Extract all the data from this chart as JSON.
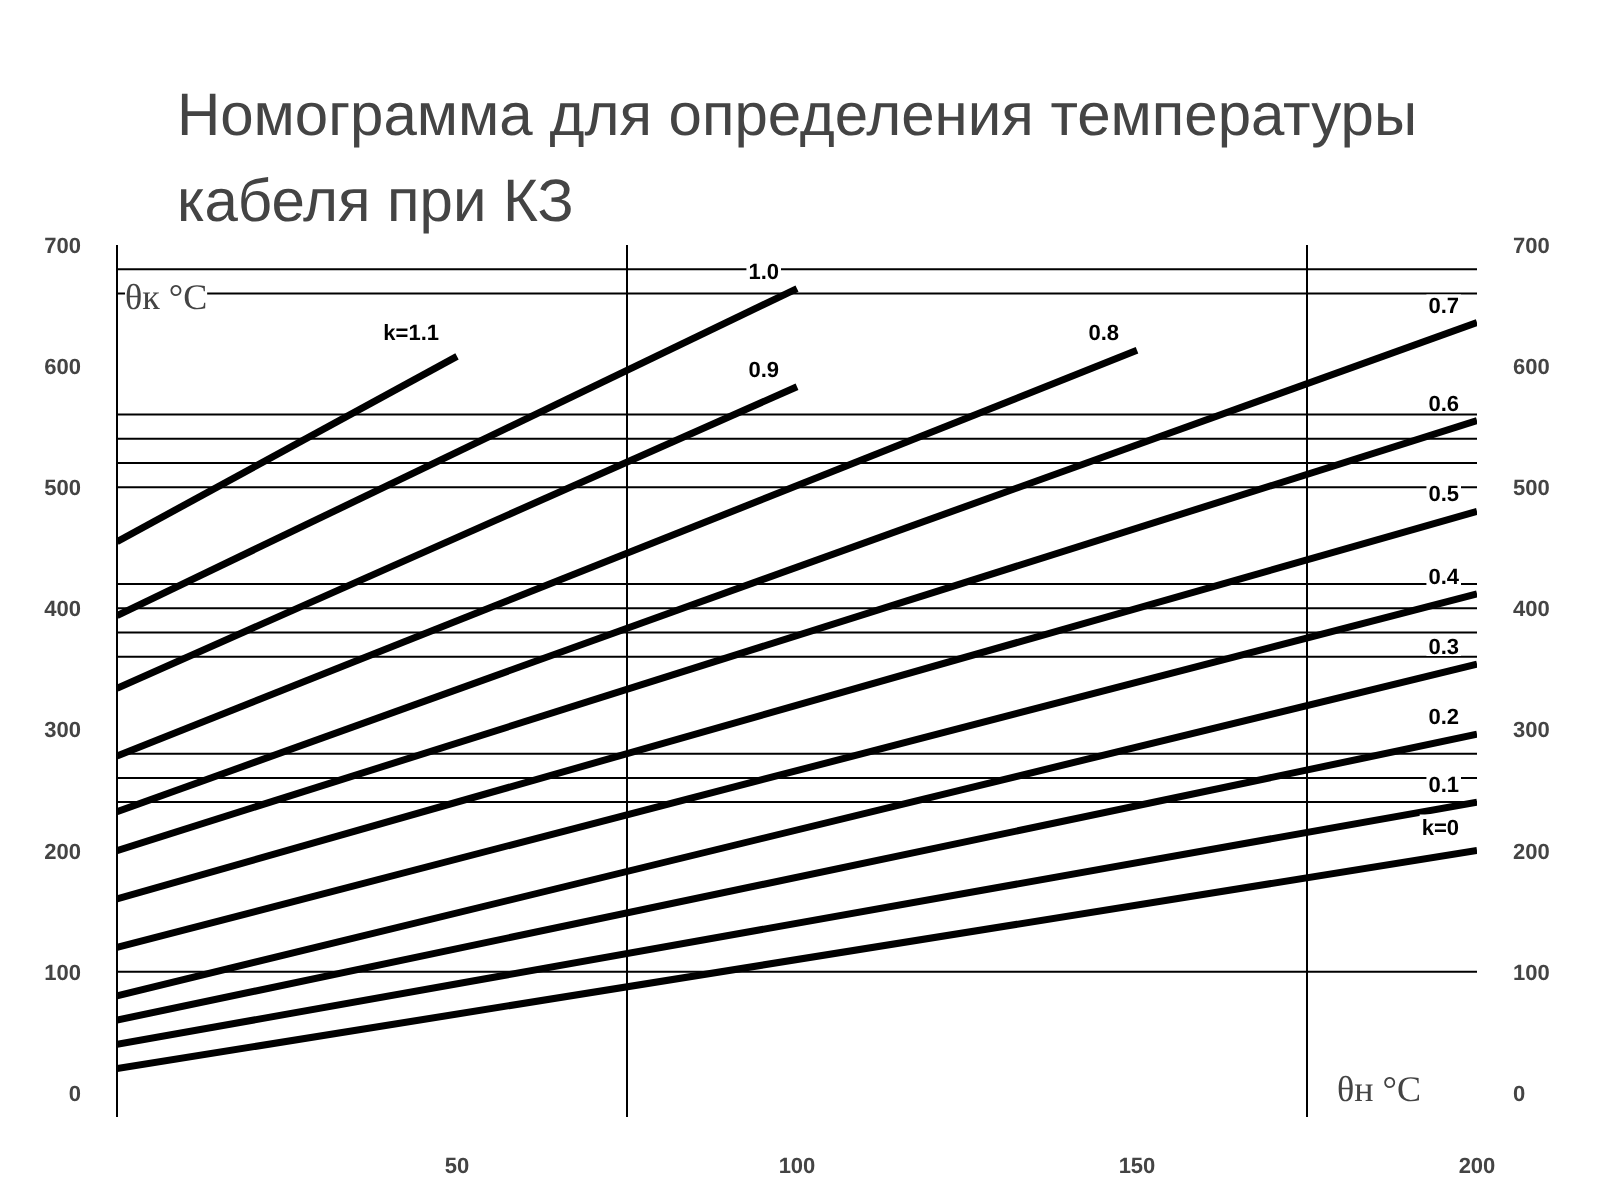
{
  "chart_data": {
    "type": "line",
    "title": "Номограмма для определения температуры кабеля при КЗ",
    "xlabel": "θн °С",
    "ylabel": "θк °С",
    "xlim": [
      0,
      200
    ],
    "xticks": [
      50,
      100,
      150,
      200
    ],
    "ylim": [
      -20,
      700
    ],
    "yticks": [
      0,
      100,
      200,
      300,
      400,
      500,
      600,
      700
    ],
    "y2lim": [
      -20,
      700
    ],
    "y2ticks": [
      0,
      100,
      200,
      300,
      400,
      500,
      600,
      700
    ],
    "grid": false,
    "marker": "none",
    "line_style": "solid",
    "series": [
      {
        "name": "k=0",
        "color": "#000000",
        "x": [
          0,
          200
        ],
        "values": [
          20,
          200
        ]
      },
      {
        "name": "0.1",
        "color": "#000000",
        "x": [
          0,
          200
        ],
        "values": [
          40,
          240
        ]
      },
      {
        "name": "0.2",
        "color": "#000000",
        "x": [
          0,
          200
        ],
        "values": [
          60,
          296
        ]
      },
      {
        "name": "0.3",
        "color": "#000000",
        "x": [
          0,
          200
        ],
        "values": [
          80,
          354
        ]
      },
      {
        "name": "0.4",
        "color": "#000000",
        "x": [
          0,
          200
        ],
        "values": [
          120,
          412
        ]
      },
      {
        "name": "0.5",
        "color": "#000000",
        "x": [
          0,
          200
        ],
        "values": [
          160,
          480
        ]
      },
      {
        "name": "0.6",
        "color": "#000000",
        "x": [
          0,
          200
        ],
        "values": [
          200,
          555
        ]
      },
      {
        "name": "0.7",
        "color": "#000000",
        "x": [
          0,
          200
        ],
        "values": [
          232,
          636
        ]
      },
      {
        "name": "0.8",
        "color": "#000000",
        "x": [
          0,
          150
        ],
        "values": [
          278,
          613
        ]
      },
      {
        "name": "0.9",
        "color": "#000000",
        "x": [
          0,
          100
        ],
        "values": [
          334,
          583
        ]
      },
      {
        "name": "1.0",
        "color": "#000000",
        "x": [
          0,
          100
        ],
        "values": [
          394,
          664
        ]
      },
      {
        "name": "k=1.1",
        "color": "#000000",
        "x": [
          0,
          50
        ],
        "values": [
          455,
          608
        ]
      }
    ],
    "ref_lines": [
      {
        "axis": "y",
        "value": 680
      },
      {
        "axis": "y",
        "value": 660
      },
      {
        "axis": "y",
        "value": 560
      },
      {
        "axis": "y",
        "value": 540
      },
      {
        "axis": "y",
        "value": 520
      },
      {
        "axis": "y",
        "value": 500
      },
      {
        "axis": "y",
        "value": 420
      },
      {
        "axis": "y",
        "value": 400
      },
      {
        "axis": "y",
        "value": 380
      },
      {
        "axis": "y",
        "value": 360
      },
      {
        "axis": "y",
        "value": 280
      },
      {
        "axis": "y",
        "value": 260
      },
      {
        "axis": "y",
        "value": 240
      },
      {
        "axis": "y",
        "value": 100
      },
      {
        "axis": "x",
        "value": 75
      },
      {
        "axis": "x",
        "value": 175
      }
    ]
  }
}
